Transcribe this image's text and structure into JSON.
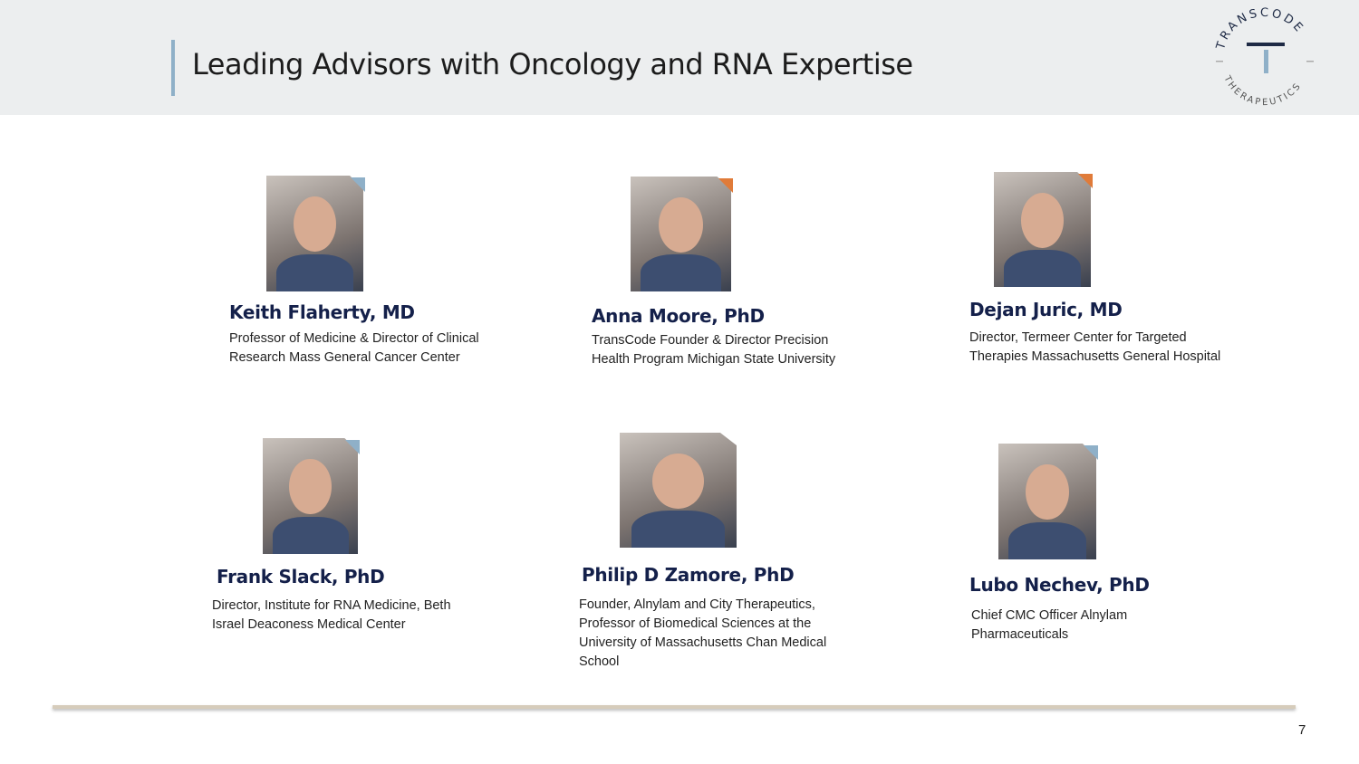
{
  "title": "Leading Advisors with Oncology and RNA Expertise",
  "logo": {
    "top_text": "TRANSCODE",
    "bottom_text": "THERAPEUTICS"
  },
  "accent_color": "#8fb0c8",
  "advisors": [
    {
      "name": "Keith Flaherty, MD",
      "description": "Professor of Medicine & Director of Clinical Research Mass General Cancer Center",
      "corner_color": "#8fb0c8"
    },
    {
      "name": "Anna Moore, PhD",
      "description": "TransCode Founder & Director Precision Health Program Michigan State University",
      "corner_color": "#e07b39"
    },
    {
      "name": "Dejan Juric, MD",
      "description": "Director, Termeer Center for Targeted Therapies Massachusetts General Hospital",
      "corner_color": "#e07b39"
    },
    {
      "name": "Frank Slack, PhD",
      "description": "Director, Institute for RNA Medicine, Beth Israel Deaconess Medical Center",
      "corner_color": "#8fb0c8"
    },
    {
      "name": "Philip D Zamore, PhD",
      "description": "Founder, Alnylam and City Therapeutics, Professor of Biomedical Sciences at the University of Massachusetts Chan Medical School",
      "corner_color": ""
    },
    {
      "name": "Lubo Nechev, PhD",
      "description": "Chief CMC Officer Alnylam Pharmaceuticals",
      "corner_color": "#8fb0c8"
    }
  ],
  "page_number": "7"
}
